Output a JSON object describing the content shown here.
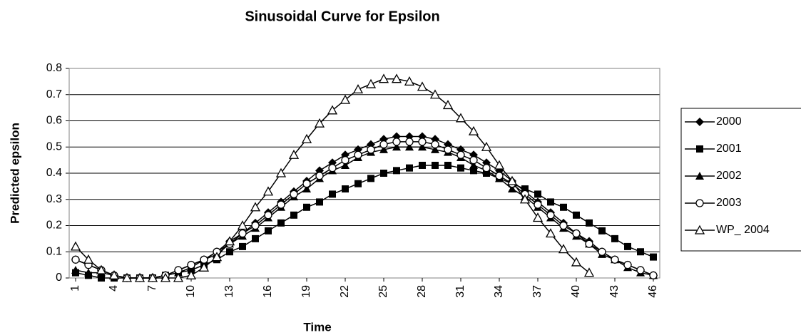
{
  "chart_data": {
    "type": "line",
    "title": "Sinusoidal Curve for Epsilon",
    "x_label": "Time",
    "y_label": "Predicted epsilon",
    "x": [
      1,
      2,
      3,
      4,
      5,
      6,
      7,
      8,
      9,
      10,
      11,
      12,
      13,
      14,
      15,
      16,
      17,
      18,
      19,
      20,
      21,
      22,
      23,
      24,
      25,
      26,
      27,
      28,
      29,
      30,
      31,
      32,
      33,
      34,
      35,
      36,
      37,
      38,
      39,
      40,
      41,
      42,
      43,
      44,
      45,
      46
    ],
    "xlim": [
      0.5,
      46.5
    ],
    "xticks": [
      1,
      4,
      7,
      10,
      13,
      16,
      19,
      22,
      25,
      28,
      31,
      34,
      37,
      40,
      43,
      46
    ],
    "ylim": [
      0,
      0.8
    ],
    "yticks": [
      0,
      0.1,
      0.2,
      0.3,
      0.4,
      0.5,
      0.6,
      0.7,
      0.8
    ],
    "grid": true,
    "legend": "right",
    "series": [
      {
        "name": "2000",
        "color": "#000000",
        "marker": "diamond",
        "values": [
          0.07,
          0.05,
          0.03,
          0.01,
          0,
          0,
          0,
          0.01,
          0.03,
          0.05,
          0.07,
          0.1,
          0.14,
          0.17,
          0.21,
          0.25,
          0.29,
          0.33,
          0.37,
          0.41,
          0.44,
          0.47,
          0.49,
          0.51,
          0.53,
          0.54,
          0.54,
          0.54,
          0.53,
          0.51,
          0.49,
          0.47,
          0.44,
          0.41,
          0.37,
          0.33,
          0.29,
          0.25,
          0.21,
          0.17,
          0.14,
          0.1,
          0.07,
          0.05,
          0.03,
          0.01
        ]
      },
      {
        "name": "2001",
        "color": "#000000",
        "marker": "square",
        "values": [
          0.02,
          0.01,
          0,
          0,
          0,
          0,
          0,
          0.01,
          0.02,
          0.03,
          0.05,
          0.07,
          0.1,
          0.12,
          0.15,
          0.18,
          0.21,
          0.24,
          0.27,
          0.29,
          0.32,
          0.34,
          0.36,
          0.38,
          0.4,
          0.41,
          0.42,
          0.43,
          0.43,
          0.43,
          0.42,
          0.41,
          0.4,
          0.38,
          0.36,
          0.34,
          0.32,
          0.29,
          0.27,
          0.24,
          0.21,
          0.18,
          0.15,
          0.12,
          0.1,
          0.08
        ]
      },
      {
        "name": "2002",
        "color": "#000000",
        "marker": "triangle",
        "values": [
          0.03,
          0.02,
          0.02,
          0.01,
          0,
          0,
          0,
          0.01,
          0.02,
          0.04,
          0.07,
          0.09,
          0.13,
          0.16,
          0.19,
          0.23,
          0.27,
          0.31,
          0.34,
          0.38,
          0.41,
          0.43,
          0.46,
          0.48,
          0.49,
          0.5,
          0.5,
          0.5,
          0.49,
          0.48,
          0.46,
          0.43,
          0.41,
          0.38,
          0.34,
          0.31,
          0.27,
          0.23,
          0.19,
          0.16,
          0.13,
          0.09,
          0.07,
          0.04,
          0.02,
          0.01
        ]
      },
      {
        "name": "2003",
        "color": "#000000",
        "marker": "circle-open",
        "values": [
          0.07,
          0.05,
          0.03,
          0.01,
          0,
          0,
          0,
          0.01,
          0.03,
          0.05,
          0.07,
          0.1,
          0.13,
          0.17,
          0.2,
          0.24,
          0.28,
          0.32,
          0.36,
          0.39,
          0.42,
          0.45,
          0.47,
          0.49,
          0.51,
          0.52,
          0.52,
          0.52,
          0.51,
          0.49,
          0.47,
          0.45,
          0.42,
          0.39,
          0.36,
          0.32,
          0.28,
          0.24,
          0.2,
          0.17,
          0.13,
          0.1,
          0.07,
          0.05,
          0.03,
          0.01
        ]
      },
      {
        "name": "WP_ 2004",
        "color": "#000000",
        "marker": "triangle-open",
        "values": [
          0.12,
          0.07,
          0.03,
          0.01,
          0,
          0,
          0,
          0,
          0,
          0.01,
          0.04,
          0.08,
          0.14,
          0.2,
          0.27,
          0.33,
          0.4,
          0.47,
          0.53,
          0.59,
          0.64,
          0.68,
          0.72,
          0.74,
          0.76,
          0.76,
          0.75,
          0.73,
          0.7,
          0.66,
          0.61,
          0.56,
          0.5,
          0.43,
          0.37,
          0.3,
          0.23,
          0.17,
          0.11,
          0.06,
          0.02,
          null,
          null,
          null,
          null,
          null
        ]
      }
    ]
  }
}
